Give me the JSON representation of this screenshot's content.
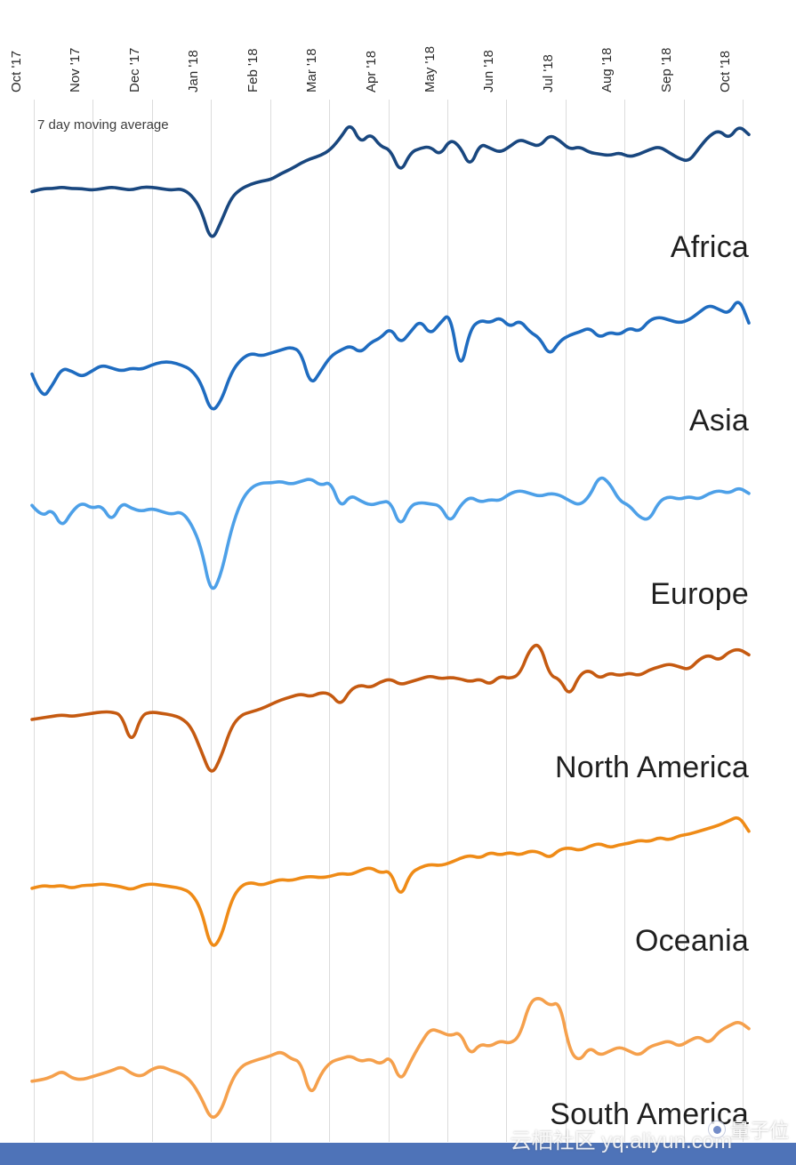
{
  "chart_data": {
    "type": "line",
    "layout": "small multiples: 6 stacked line charts sharing one x axis, vertical monthly gridlines, no y axis shown",
    "annotation": "7 day moving average",
    "x_tick_labels": [
      "Oct '17",
      "Nov '17",
      "Dec '17",
      "Jan '18",
      "Feb '18",
      "Mar '18",
      "Apr '18",
      "May '18",
      "Jun '18",
      "Jul '18",
      "Aug '18",
      "Sep '18",
      "Oct '18"
    ],
    "x_range": [
      "Oct '17",
      "Oct '18"
    ],
    "y_axis": "relative level (unlabeled); values estimated on a 0-100 scale",
    "grid": "vertical gridlines at each month, light gray",
    "series": [
      {
        "name": "Africa",
        "color": "#19477f",
        "values": [
          50,
          52,
          52,
          53,
          52,
          52,
          51,
          52,
          53,
          52,
          51,
          53,
          53,
          52,
          51,
          52,
          48,
          38,
          16,
          30,
          46,
          52,
          55,
          57,
          58,
          62,
          65,
          69,
          72,
          74,
          78,
          86,
          96,
          82,
          89,
          80,
          78,
          62,
          76,
          79,
          80,
          74,
          85,
          80,
          66,
          82,
          79,
          76,
          80,
          85,
          82,
          80,
          88,
          84,
          78,
          80,
          76,
          75,
          74,
          76,
          73,
          75,
          78,
          80,
          76,
          72,
          70,
          79,
          87,
          91,
          85,
          94,
          88
        ]
      },
      {
        "name": "Asia",
        "color": "#1f6cc0",
        "values": [
          44,
          27,
          36,
          48,
          46,
          42,
          46,
          50,
          48,
          46,
          48,
          47,
          50,
          52,
          52,
          50,
          47,
          38,
          18,
          26,
          45,
          54,
          58,
          56,
          58,
          60,
          62,
          59,
          36,
          46,
          56,
          60,
          63,
          58,
          65,
          68,
          75,
          64,
          72,
          80,
          70,
          78,
          85,
          44,
          74,
          80,
          78,
          82,
          75,
          80,
          72,
          68,
          56,
          66,
          70,
          72,
          75,
          68,
          72,
          70,
          75,
          72,
          80,
          82,
          80,
          78,
          80,
          85,
          90,
          87,
          84,
          95,
          78
        ]
      },
      {
        "name": "Europe",
        "color": "#4da0e8",
        "values": [
          72,
          64,
          70,
          57,
          68,
          74,
          70,
          72,
          61,
          74,
          70,
          68,
          70,
          68,
          66,
          68,
          60,
          44,
          12,
          26,
          56,
          75,
          84,
          87,
          87,
          88,
          86,
          88,
          90,
          85,
          88,
          70,
          79,
          75,
          72,
          74,
          75,
          57,
          72,
          74,
          73,
          72,
          60,
          72,
          78,
          74,
          76,
          75,
          80,
          82,
          80,
          78,
          80,
          79,
          75,
          72,
          78,
          92,
          87,
          75,
          72,
          64,
          62,
          75,
          78,
          76,
          78,
          76,
          80,
          82,
          80,
          84,
          80
        ]
      },
      {
        "name": "North America",
        "color": "#c55a11",
        "values": [
          45,
          46,
          47,
          48,
          47,
          48,
          49,
          50,
          50,
          48,
          28,
          48,
          50,
          49,
          48,
          46,
          40,
          24,
          7,
          20,
          40,
          48,
          50,
          52,
          55,
          58,
          60,
          62,
          60,
          63,
          62,
          54,
          65,
          68,
          66,
          70,
          72,
          68,
          70,
          72,
          74,
          72,
          73,
          72,
          70,
          72,
          68,
          74,
          72,
          75,
          92,
          96,
          74,
          72,
          60,
          75,
          78,
          72,
          76,
          74,
          76,
          74,
          78,
          80,
          82,
          80,
          78,
          85,
          88,
          84,
          90,
          92,
          88
        ]
      },
      {
        "name": "Oceania",
        "color": "#ef8b17",
        "values": [
          48,
          50,
          49,
          50,
          48,
          50,
          50,
          51,
          50,
          49,
          47,
          50,
          51,
          50,
          49,
          48,
          45,
          34,
          7,
          15,
          40,
          50,
          52,
          50,
          52,
          54,
          53,
          55,
          56,
          55,
          56,
          58,
          57,
          60,
          62,
          58,
          60,
          41,
          58,
          62,
          64,
          63,
          65,
          68,
          70,
          68,
          72,
          70,
          72,
          70,
          73,
          72,
          68,
          74,
          75,
          73,
          76,
          78,
          75,
          77,
          78,
          80,
          79,
          82,
          80,
          83,
          84,
          86,
          88,
          90,
          93,
          96,
          86
        ]
      },
      {
        "name": "South America",
        "color": "#f5a04c",
        "values": [
          35,
          36,
          38,
          42,
          37,
          36,
          38,
          40,
          42,
          45,
          40,
          38,
          43,
          45,
          42,
          40,
          35,
          24,
          9,
          15,
          35,
          45,
          48,
          50,
          52,
          55,
          50,
          48,
          24,
          40,
          48,
          50,
          52,
          48,
          50,
          46,
          52,
          34,
          48,
          60,
          70,
          68,
          65,
          68,
          52,
          60,
          58,
          62,
          60,
          65,
          88,
          91,
          85,
          88,
          55,
          48,
          58,
          52,
          55,
          58,
          55,
          52,
          58,
          60,
          62,
          58,
          62,
          65,
          60,
          68,
          72,
          75,
          70
        ]
      }
    ]
  },
  "watermarks": {
    "aliyun_text": "云栖社区 yq.aliyun.com",
    "qbit_text": "量子位"
  },
  "colors": {
    "gridline": "#dcdcdc",
    "label_text": "#1f1f1f",
    "bottom_bar": "#4e73b8"
  }
}
